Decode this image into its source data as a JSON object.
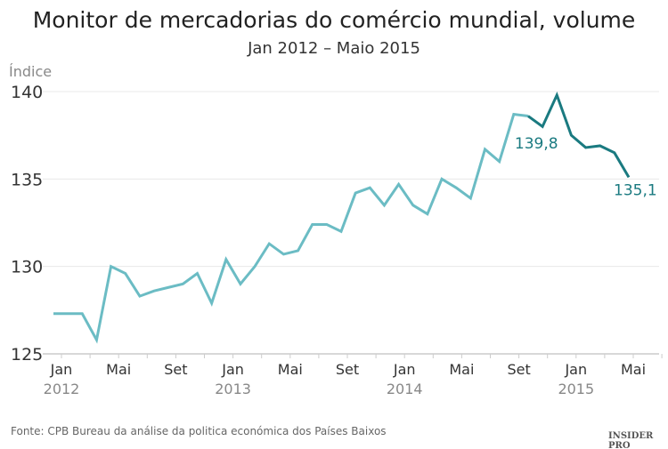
{
  "chart_data": {
    "type": "line",
    "title": "Monitor de mercadorias do comércio mundial, volume",
    "subtitle": "Jan 2012 – Maio 2015",
    "ylabel": "Índice",
    "ylim": [
      125,
      140
    ],
    "yticks": [
      "125",
      "130",
      "135",
      "140"
    ],
    "xtick_labels": [
      {
        "month": 0,
        "label": "Jan",
        "year": "2012"
      },
      {
        "month": 4,
        "label": "Mai"
      },
      {
        "month": 8,
        "label": "Set"
      },
      {
        "month": 12,
        "label": "Jan",
        "year": "2013"
      },
      {
        "month": 16,
        "label": "Mai"
      },
      {
        "month": 20,
        "label": "Set"
      },
      {
        "month": 24,
        "label": "Jan",
        "year": "2014"
      },
      {
        "month": 28,
        "label": "Mai"
      },
      {
        "month": 32,
        "label": "Set"
      },
      {
        "month": 36,
        "label": "Jan",
        "year": "2015"
      },
      {
        "month": 40,
        "label": "Mai"
      }
    ],
    "grid": true,
    "x_start": "2012-01",
    "x_end": "2015-05",
    "values": [
      127.3,
      127.3,
      127.3,
      125.8,
      130.0,
      129.6,
      128.3,
      128.6,
      128.8,
      129.0,
      129.6,
      127.9,
      130.4,
      129.0,
      130.0,
      131.3,
      130.7,
      130.9,
      132.4,
      132.4,
      132.0,
      134.2,
      134.5,
      133.5,
      134.7,
      133.5,
      133.0,
      135.0,
      134.5,
      133.9,
      136.7,
      136.0,
      138.7,
      138.6,
      138.0,
      139.8,
      137.5,
      136.8,
      136.9,
      136.5,
      135.1
    ],
    "highlight_from": "2014-10",
    "colors": {
      "main": "#6bbcc4",
      "highlight": "#1a7a80",
      "grid": "#e8e8e8"
    },
    "annotations": [
      {
        "month": 35,
        "label": "139,8"
      },
      {
        "month": 40,
        "label": "135,1"
      }
    ]
  },
  "source": "Fonte: CPB Bureau da análise da politica económica dos Países Baixos",
  "brand": "INSIDER PRO"
}
